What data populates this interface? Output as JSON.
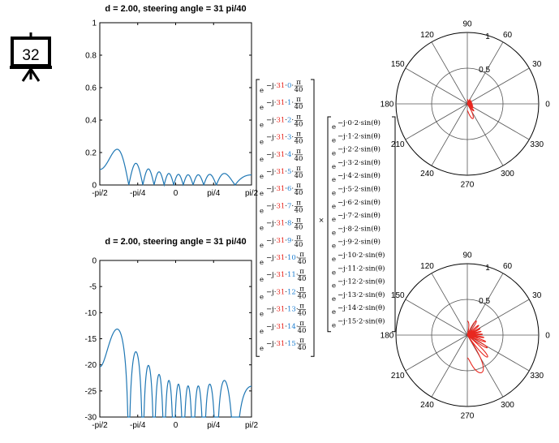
{
  "frame_badge": "32",
  "colors": {
    "cartesian_line": "#1f77b4",
    "polar_line": "#e8271f",
    "red_text": "#e8271f",
    "blue_text": "#1f7fd1",
    "axis": "#000000",
    "grid": "#555555"
  },
  "chart_data": [
    {
      "type": "line",
      "title": "d = 2.00, steering angle  = 31 pi/40",
      "xlabel": "",
      "ylabel": "",
      "xlim": [
        -1.5708,
        1.5708
      ],
      "ylim": [
        0,
        1
      ],
      "xticks": [
        -1.5708,
        -0.7854,
        0,
        0.7854,
        1.5708
      ],
      "xtick_labels": [
        "-pi/2",
        "-pi/4",
        "0",
        "pi/4",
        "pi/2"
      ],
      "yticks": [
        0,
        0.2,
        0.4,
        0.6,
        0.8,
        1
      ],
      "ytick_labels": [
        "0",
        "0.2",
        "0.4",
        "0.6",
        "0.8",
        "1"
      ],
      "params": {
        "N": 16,
        "d": 2.0,
        "steer_num": 31,
        "steer_den": 40,
        "scale": "linear"
      },
      "grid": false
    },
    {
      "type": "line",
      "title": "d = 2.00, steering angle  = 31 pi/40",
      "xlabel": "",
      "ylabel": "",
      "xlim": [
        -1.5708,
        1.5708
      ],
      "ylim": [
        -30,
        0
      ],
      "xticks": [
        -1.5708,
        -0.7854,
        0,
        0.7854,
        1.5708
      ],
      "xtick_labels": [
        "-pi/2",
        "-pi/4",
        "0",
        "pi/4",
        "pi/2"
      ],
      "yticks": [
        0,
        -5,
        -10,
        -15,
        -20,
        -25,
        -30
      ],
      "ytick_labels": [
        "0",
        "-5",
        "-10",
        "-15",
        "-20",
        "-25",
        "-30"
      ],
      "params": {
        "N": 16,
        "d": 2.0,
        "steer_num": 31,
        "steer_den": 40,
        "scale": "dB"
      },
      "grid": false
    },
    {
      "type": "polar",
      "title": "",
      "angle_labels": [
        "0",
        "30",
        "60",
        "90",
        "120",
        "150",
        "180",
        "210",
        "240",
        "270",
        "300",
        "330"
      ],
      "radial_labels": [
        "0.5",
        "1"
      ],
      "rlim": [
        0,
        1
      ],
      "params": {
        "N": 16,
        "d": 2.0,
        "steer_num": 31,
        "steer_den": 40,
        "scale": "linear"
      }
    },
    {
      "type": "polar",
      "title": "",
      "angle_labels": [
        "0",
        "30",
        "60",
        "90",
        "120",
        "150",
        "180",
        "210",
        "240",
        "270",
        "300",
        "330"
      ],
      "radial_labels": [
        "0.5",
        "1"
      ],
      "rlim": [
        -30,
        0
      ],
      "params": {
        "N": 16,
        "d": 2.0,
        "steer_num": 31,
        "steer_den": 40,
        "scale": "dB"
      }
    }
  ],
  "steering_vector": {
    "base": "e",
    "prefix": "−j·",
    "steer": "31",
    "suffix_num": "π",
    "suffix_den": "40",
    "indices": [
      "0",
      "1",
      "2",
      "3",
      "4",
      "5",
      "6",
      "7",
      "8",
      "9",
      "10",
      "11",
      "12",
      "13",
      "14",
      "15"
    ]
  },
  "multiply_symbol": "×",
  "array_vector": {
    "base": "e",
    "prefix": "−j·",
    "factor": "2",
    "func": "sin(θ)",
    "indices": [
      "0",
      "1",
      "2",
      "3",
      "4",
      "5",
      "6",
      "7",
      "8",
      "9",
      "10",
      "11",
      "12",
      "13",
      "14",
      "15"
    ]
  }
}
